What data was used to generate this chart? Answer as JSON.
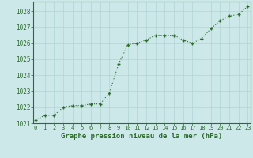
{
  "x": [
    0,
    1,
    2,
    3,
    4,
    5,
    6,
    7,
    8,
    9,
    10,
    11,
    12,
    13,
    14,
    15,
    16,
    17,
    18,
    19,
    20,
    21,
    22,
    23
  ],
  "y": [
    1021.2,
    1021.5,
    1021.5,
    1022.0,
    1022.1,
    1022.1,
    1022.2,
    1022.2,
    1022.9,
    1024.7,
    1025.9,
    1026.0,
    1026.2,
    1026.5,
    1026.5,
    1026.5,
    1026.2,
    1026.0,
    1026.3,
    1026.9,
    1027.4,
    1027.7,
    1027.8,
    1028.3
  ],
  "line_color": "#2d6a2d",
  "marker_color": "#2d6a2d",
  "bg_color": "#cce8e8",
  "grid_color": "#b0d4d4",
  "xlabel": "Graphe pression niveau de la mer (hPa)",
  "xlabel_color": "#2d6a2d",
  "tick_color": "#2d6a2d",
  "ylim": [
    1021.0,
    1028.6
  ],
  "xlim": [
    -0.3,
    23.3
  ],
  "yticks": [
    1021,
    1022,
    1023,
    1024,
    1025,
    1026,
    1027,
    1028
  ],
  "xticks": [
    0,
    1,
    2,
    3,
    4,
    5,
    6,
    7,
    8,
    9,
    10,
    11,
    12,
    13,
    14,
    15,
    16,
    17,
    18,
    19,
    20,
    21,
    22,
    23
  ],
  "ytick_fontsize": 5.5,
  "xtick_fontsize": 5.0,
  "xlabel_fontsize": 6.5
}
